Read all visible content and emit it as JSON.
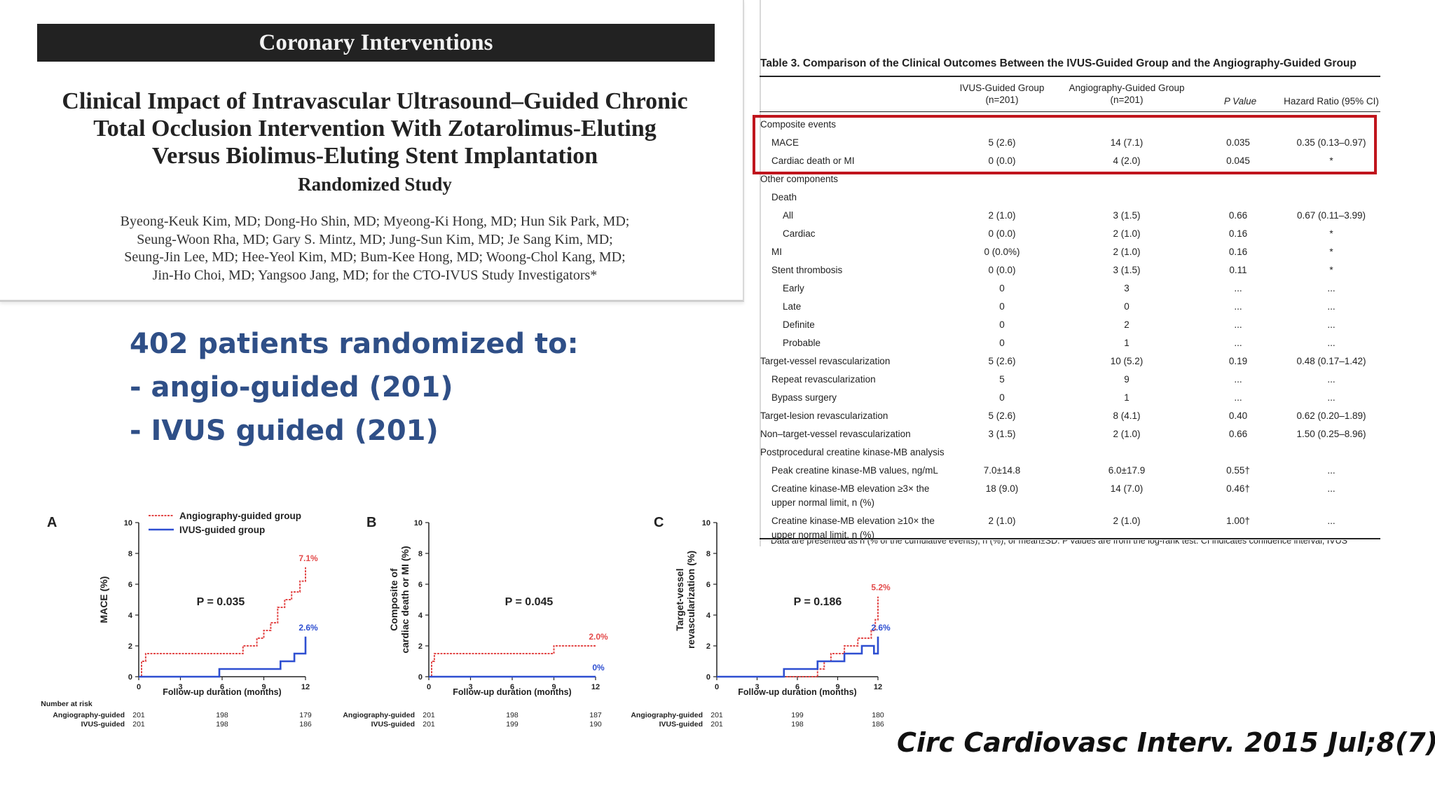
{
  "paper": {
    "section": "Coronary Interventions",
    "title_lines": [
      "Clinical Impact of Intravascular Ultrasound–Guided Chronic",
      "Total Occlusion Intervention With Zotarolimus-Eluting",
      "Versus Biolimus-Eluting Stent Implantation"
    ],
    "subtitle": "Randomized Study",
    "author_lines": [
      "Byeong-Keuk Kim, MD; Dong-Ho Shin, MD; Myeong-Ki Hong, MD; Hun Sik Park, MD;",
      "Seung-Woon Rha, MD; Gary S. Mintz, MD; Jung-Sun Kim, MD; Je Sang Kim, MD;",
      "Seung-Jin Lee, MD; Hee-Yeol Kim, MD; Bum-Kee Hong, MD; Woong-Chol Kang, MD;",
      "Jin-Ho Choi, MD; Yangsoo Jang, MD; for the CTO-IVUS Study Investigators*"
    ]
  },
  "summary": {
    "headline": "402 patients randomized to:",
    "bullets": [
      "- angio-guided (201)",
      "- IVUS guided (201)"
    ],
    "color": "#2f4f87"
  },
  "citation": "Circ Cardiovasc Interv. 2015 Jul;8(7)",
  "table": {
    "caption": "Table 3.   Comparison of the Clinical Outcomes Between the IVUS-Guided Group and the Angiography-Guided Group",
    "headers": {
      "ivus": [
        "IVUS-Guided Group",
        "(n=201)"
      ],
      "angio": [
        "Angiography-Guided Group",
        "(n=201)"
      ],
      "p": "P Value",
      "hr": "Hazard Ratio (95% CI)"
    },
    "highlight_color": "#c0151d",
    "rows": [
      {
        "label": "Composite events",
        "ivus": "",
        "angio": "",
        "p": "",
        "hr": ""
      },
      {
        "label": "MACE",
        "ivus": "5 (2.6)",
        "angio": "14 (7.1)",
        "p": "0.035",
        "hr": "0.35 (0.13–0.97)"
      },
      {
        "label": "Cardiac death or MI",
        "ivus": "0 (0.0)",
        "angio": "4 (2.0)",
        "p": "0.045",
        "hr": "*"
      },
      {
        "label": "Other components",
        "ivus": "",
        "angio": "",
        "p": "",
        "hr": ""
      },
      {
        "label": "Death",
        "ivus": "",
        "angio": "",
        "p": "",
        "hr": ""
      },
      {
        "label": "All",
        "ivus": "2 (1.0)",
        "angio": "3 (1.5)",
        "p": "0.66",
        "hr": "0.67 (0.11–3.99)"
      },
      {
        "label": "Cardiac",
        "ivus": "0 (0.0)",
        "angio": "2 (1.0)",
        "p": "0.16",
        "hr": "*"
      },
      {
        "label": "MI",
        "ivus": "0 (0.0%)",
        "angio": "2 (1.0)",
        "p": "0.16",
        "hr": "*"
      },
      {
        "label": "Stent thrombosis",
        "ivus": "0 (0.0)",
        "angio": "3 (1.5)",
        "p": "0.11",
        "hr": "*"
      },
      {
        "label": "Early",
        "ivus": "0",
        "angio": "3",
        "p": "...",
        "hr": "..."
      },
      {
        "label": "Late",
        "ivus": "0",
        "angio": "0",
        "p": "...",
        "hr": "..."
      },
      {
        "label": "Definite",
        "ivus": "0",
        "angio": "2",
        "p": "...",
        "hr": "..."
      },
      {
        "label": "Probable",
        "ivus": "0",
        "angio": "1",
        "p": "...",
        "hr": "..."
      },
      {
        "label": "Target-vessel revascularization",
        "ivus": "5 (2.6)",
        "angio": "10 (5.2)",
        "p": "0.19",
        "hr": "0.48 (0.17–1.42)"
      },
      {
        "label": "Repeat revascularization",
        "ivus": "5",
        "angio": "9",
        "p": "...",
        "hr": "..."
      },
      {
        "label": "Bypass surgery",
        "ivus": "0",
        "angio": "1",
        "p": "...",
        "hr": "..."
      },
      {
        "label": "Target-lesion revascularization",
        "ivus": "5 (2.6)",
        "angio": "8 (4.1)",
        "p": "0.40",
        "hr": "0.62 (0.20–1.89)"
      },
      {
        "label": "Non–target-vessel revascularization",
        "ivus": "3 (1.5)",
        "angio": "2 (1.0)",
        "p": "0.66",
        "hr": "1.50 (0.25–8.96)"
      },
      {
        "label": "Postprocedural creatine kinase-MB analysis",
        "ivus": "",
        "angio": "",
        "p": "",
        "hr": ""
      },
      {
        "label": "Peak creatine kinase-MB values, ng/mL",
        "ivus": "7.0±14.8",
        "angio": "6.0±17.9",
        "p": "0.55†",
        "hr": "..."
      },
      {
        "label": "Creatine kinase-MB elevation ≥3× the",
        "label2": "upper normal limit, n (%)",
        "ivus": "18 (9.0)",
        "angio": "14 (7.0)",
        "p": "0.46†",
        "hr": "..."
      },
      {
        "label": "Creatine kinase-MB elevation ≥10× the",
        "label2": "upper normal limit, n (%)",
        "ivus": "2 (1.0)",
        "angio": "2 (1.0)",
        "p": "1.00†",
        "hr": "..."
      }
    ],
    "footnote": "Data are presented as n (% of the cumulative events), n (%), or mean±SD. P values are from the log-rank test. CI indicates confidence interval; IVUS"
  },
  "chart_data": [
    {
      "type": "line",
      "panel": "A",
      "ylabel": "MACE (%)",
      "xlabel": "Follow-up duration (months)",
      "xlim": [
        0,
        12
      ],
      "ylim": [
        0,
        10
      ],
      "xticks": [
        0,
        3,
        6,
        9,
        12
      ],
      "yticks": [
        0,
        2,
        4,
        6,
        8,
        10
      ],
      "p_value": "P = 0.035",
      "legend": [
        "Angiography-guided group",
        "IVUS-guided group"
      ],
      "series": [
        {
          "name": "Angiography-guided group",
          "color": "#e34a4a",
          "end_label": "7.1%",
          "x": [
            0,
            0.2,
            0.2,
            0.5,
            0.5,
            7.5,
            7.5,
            8.5,
            8.5,
            9,
            9,
            9.5,
            9.5,
            10,
            10,
            10.5,
            10.5,
            11,
            11,
            11.6,
            11.6,
            12,
            12
          ],
          "y": [
            0,
            0,
            1.0,
            1.0,
            1.5,
            1.5,
            2.0,
            2.0,
            2.5,
            2.5,
            3.0,
            3.0,
            3.5,
            3.5,
            4.5,
            4.5,
            5.0,
            5.0,
            5.5,
            5.5,
            6.2,
            6.2,
            7.1
          ]
        },
        {
          "name": "IVUS-guided group",
          "color": "#2e4fd1",
          "end_label": "2.6%",
          "x": [
            0,
            5.8,
            5.8,
            10.2,
            10.2,
            11.2,
            11.2,
            12,
            12
          ],
          "y": [
            0,
            0,
            0.5,
            0.5,
            1.0,
            1.0,
            1.5,
            1.5,
            2.6
          ]
        }
      ],
      "risk_table": {
        "title": "Number at risk",
        "times": [
          0,
          6,
          12
        ],
        "rows": [
          {
            "name": "Angiography-guided",
            "values": [
              201,
              198,
              179
            ]
          },
          {
            "name": "IVUS-guided",
            "values": [
              201,
              198,
              186
            ]
          }
        ]
      }
    },
    {
      "type": "line",
      "panel": "B",
      "ylabel_lines": [
        "Composite of",
        "cardiac death or MI (%)"
      ],
      "xlabel": "Follow-up duration (months)",
      "xlim": [
        0,
        12
      ],
      "ylim": [
        0,
        10
      ],
      "xticks": [
        0,
        3,
        6,
        9,
        12
      ],
      "yticks": [
        0,
        2,
        4,
        6,
        8,
        10
      ],
      "p_value": "P = 0.045",
      "series": [
        {
          "name": "Angiography-guided group",
          "color": "#e34a4a",
          "end_label": "2.0%",
          "x": [
            0,
            0.2,
            0.2,
            0.4,
            0.4,
            9,
            9,
            12
          ],
          "y": [
            0,
            0,
            1.0,
            1.0,
            1.5,
            1.5,
            2.0,
            2.0
          ]
        },
        {
          "name": "IVUS-guided group",
          "color": "#2e4fd1",
          "end_label": "0%",
          "x": [
            0,
            12
          ],
          "y": [
            0,
            0
          ]
        }
      ],
      "risk_table": {
        "times": [
          0,
          6,
          12
        ],
        "rows": [
          {
            "name": "Angiography-guided",
            "values": [
              201,
              198,
              187
            ]
          },
          {
            "name": "IVUS-guided",
            "values": [
              201,
              199,
              190
            ]
          }
        ]
      }
    },
    {
      "type": "line",
      "panel": "C",
      "ylabel_lines": [
        "Target-vessel",
        "revascularization (%)"
      ],
      "xlabel": "Follow-up duration (months)",
      "xlim": [
        0,
        12
      ],
      "ylim": [
        0,
        10
      ],
      "xticks": [
        0,
        3,
        6,
        9,
        12
      ],
      "yticks": [
        0,
        2,
        4,
        6,
        8,
        10
      ],
      "p_value": "P = 0.186",
      "series": [
        {
          "name": "Angiography-guided group",
          "color": "#e34a4a",
          "end_label": "5.2%",
          "x": [
            0,
            7.5,
            7.5,
            8,
            8,
            8.5,
            8.5,
            9.5,
            9.5,
            10.5,
            10.5,
            11.5,
            11.5,
            11.8,
            11.8,
            12,
            12
          ],
          "y": [
            0,
            0,
            0.5,
            0.5,
            1.0,
            1.0,
            1.5,
            1.5,
            2.0,
            2.0,
            2.5,
            2.5,
            3.0,
            3.0,
            3.7,
            3.7,
            5.2
          ]
        },
        {
          "name": "IVUS-guided group",
          "color": "#2e4fd1",
          "end_label": "2.6%",
          "x": [
            0,
            5.0,
            5.0,
            7.5,
            7.5,
            9.5,
            9.5,
            10.8,
            10.8,
            11.7,
            11.7,
            12,
            12
          ],
          "y": [
            0,
            0,
            0.5,
            0.5,
            1.0,
            1.0,
            1.5,
            1.5,
            2.0,
            2.0,
            1.5,
            1.5,
            2.6
          ]
        }
      ],
      "risk_table": {
        "times": [
          0,
          6,
          12
        ],
        "rows": [
          {
            "name": "Angiography-guided",
            "values": [
              201,
              199,
              180
            ]
          },
          {
            "name": "IVUS-guided",
            "values": [
              201,
              198,
              186
            ]
          }
        ]
      }
    }
  ]
}
